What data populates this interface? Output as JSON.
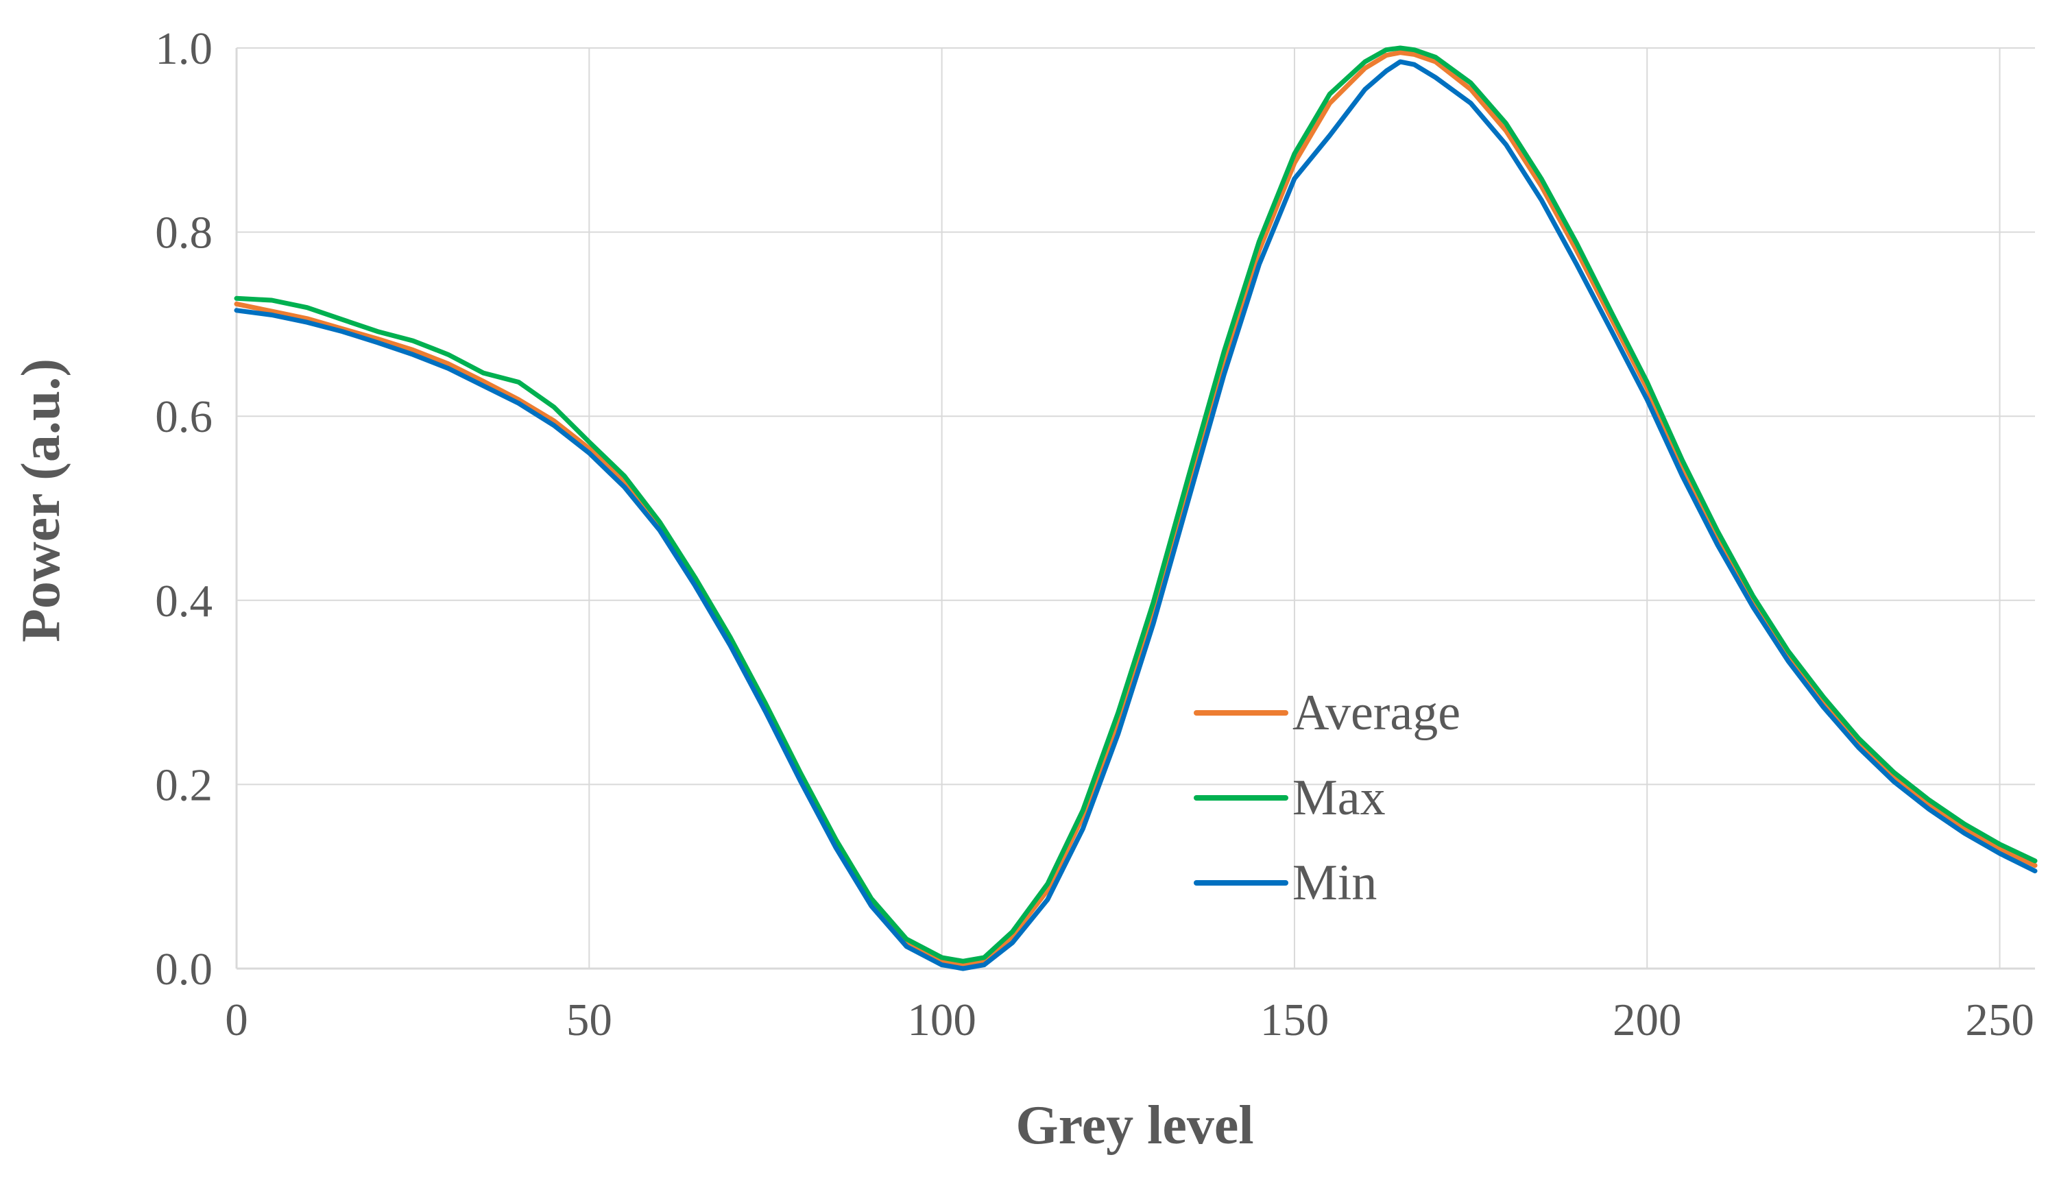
{
  "chart_data": {
    "type": "line",
    "title": "",
    "xlabel": "Grey level",
    "ylabel": "Power (a.u.)",
    "xlim": [
      0,
      255
    ],
    "ylim": [
      0,
      1.0
    ],
    "x_ticks": [
      0,
      50,
      100,
      150,
      200,
      250
    ],
    "x_tick_labels": [
      "0",
      "50",
      "100",
      "150",
      "200",
      "250"
    ],
    "y_ticks": [
      0,
      0.2,
      0.4,
      0.6,
      0.8,
      1.0
    ],
    "y_tick_labels": [
      "0.0",
      "0.2",
      "0.4",
      "0.6",
      "0.8",
      "1.0"
    ],
    "grid": true,
    "legend_position": "center-right",
    "x": [
      0,
      5,
      10,
      15,
      20,
      25,
      30,
      35,
      40,
      45,
      50,
      55,
      60,
      65,
      70,
      75,
      80,
      85,
      90,
      95,
      100,
      103,
      106,
      110,
      115,
      120,
      125,
      130,
      135,
      140,
      145,
      150,
      155,
      160,
      163,
      165,
      167,
      170,
      175,
      180,
      185,
      190,
      195,
      200,
      205,
      210,
      215,
      220,
      225,
      230,
      235,
      240,
      245,
      250,
      255
    ],
    "series": [
      {
        "name": "Average",
        "color": "#ed7d31",
        "values": [
          0.722,
          0.714,
          0.706,
          0.695,
          0.684,
          0.672,
          0.657,
          0.638,
          0.618,
          0.595,
          0.565,
          0.528,
          0.48,
          0.42,
          0.355,
          0.283,
          0.207,
          0.135,
          0.072,
          0.028,
          0.008,
          0.004,
          0.008,
          0.035,
          0.085,
          0.165,
          0.27,
          0.39,
          0.525,
          0.66,
          0.78,
          0.875,
          0.94,
          0.978,
          0.992,
          0.995,
          0.993,
          0.985,
          0.955,
          0.91,
          0.85,
          0.78,
          0.705,
          0.63,
          0.545,
          0.468,
          0.4,
          0.34,
          0.29,
          0.245,
          0.208,
          0.178,
          0.152,
          0.13,
          0.112
        ]
      },
      {
        "name": "Max",
        "color": "#00b050",
        "values": [
          0.728,
          0.726,
          0.718,
          0.705,
          0.692,
          0.682,
          0.667,
          0.647,
          0.637,
          0.61,
          0.572,
          0.535,
          0.485,
          0.425,
          0.36,
          0.288,
          0.212,
          0.14,
          0.076,
          0.032,
          0.012,
          0.008,
          0.012,
          0.04,
          0.092,
          0.172,
          0.278,
          0.398,
          0.535,
          0.67,
          0.79,
          0.885,
          0.95,
          0.985,
          0.998,
          1.0,
          0.998,
          0.99,
          0.962,
          0.918,
          0.858,
          0.788,
          0.712,
          0.637,
          0.552,
          0.475,
          0.405,
          0.345,
          0.295,
          0.25,
          0.213,
          0.183,
          0.157,
          0.135,
          0.117
        ]
      },
      {
        "name": "Min",
        "color": "#0070c0",
        "values": [
          0.715,
          0.71,
          0.702,
          0.692,
          0.68,
          0.667,
          0.652,
          0.633,
          0.614,
          0.59,
          0.56,
          0.523,
          0.476,
          0.416,
          0.351,
          0.279,
          0.203,
          0.131,
          0.068,
          0.024,
          0.004,
          0.0,
          0.004,
          0.028,
          0.075,
          0.152,
          0.255,
          0.375,
          0.51,
          0.645,
          0.765,
          0.858,
          0.905,
          0.955,
          0.975,
          0.985,
          0.982,
          0.968,
          0.94,
          0.895,
          0.835,
          0.765,
          0.692,
          0.618,
          0.535,
          0.46,
          0.393,
          0.334,
          0.284,
          0.24,
          0.203,
          0.173,
          0.147,
          0.125,
          0.106
        ]
      }
    ]
  }
}
